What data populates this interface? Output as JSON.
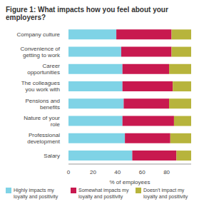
{
  "chart_data": {
    "type": "bar",
    "title": "Figure 1: What impacts how you feel about your employers?",
    "orientation": "horizontal",
    "stacked": true,
    "grid": false,
    "legend": "bottom",
    "x_label": "% of employees",
    "categories": [
      "Company culture",
      "Convenience of getting to work",
      "Career opportunities",
      "The colleagues you work with",
      "Pensions and benefits",
      "Nature of your role",
      "Professional development",
      "Salary"
    ],
    "series": [
      {
        "name": "Highly impacts my loyalty and positivity",
        "color": "#7fd3e6",
        "values": [
          39,
          43,
          44,
          44,
          45,
          44,
          46,
          52
        ]
      },
      {
        "name": "Somewhat impacts my loyalty and positivity",
        "color": "#c8194f",
        "values": [
          45,
          41,
          38,
          41,
          37,
          42,
          37,
          36
        ]
      },
      {
        "name": "Doesn't impact my loyalty and positivity",
        "color": "#b7b43c",
        "values": [
          16,
          16,
          18,
          15,
          18,
          14,
          17,
          12
        ]
      }
    ],
    "xlim": [
      0,
      100
    ],
    "xticks": [
      0,
      20,
      40,
      60,
      80
    ]
  }
}
